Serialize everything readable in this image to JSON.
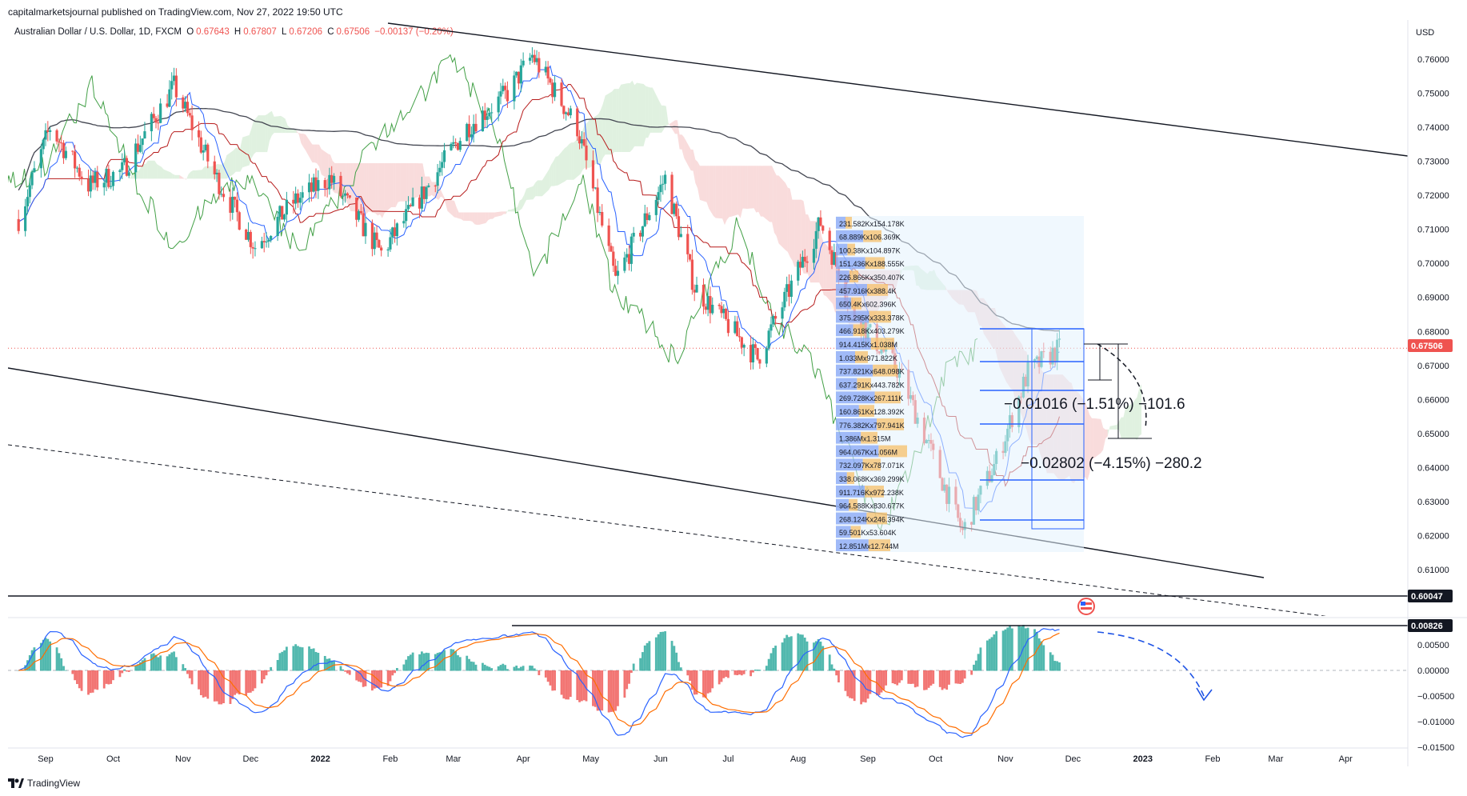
{
  "header": {
    "publisher_text": "capitalmarketsjournal published on TradingView.com, Nov 27, 2022 19:50 UTC"
  },
  "symbol": {
    "name": "Australian Dollar / U.S. Dollar, 1D, FXCM",
    "o_label": "O",
    "o_value": "0.67643",
    "h_label": "H",
    "h_value": "0.67807",
    "l_label": "L",
    "l_value": "0.67206",
    "c_label": "C",
    "c_value": "0.67506",
    "change": "−0.00137 (−0.20%)"
  },
  "footer": {
    "brand": "TradingView"
  },
  "chart_data": [
    {
      "type": "line",
      "title": "Australian Dollar / U.S. Dollar, 1D, FXCM",
      "currency_label": "USD",
      "price_axis": {
        "ticks": [
          "0.76000",
          "0.75000",
          "0.74000",
          "0.73000",
          "0.72000",
          "0.71000",
          "0.70000",
          "0.69000",
          "0.68000",
          "0.67000",
          "0.66000",
          "0.65000",
          "0.64000",
          "0.63000",
          "0.62000",
          "0.61000"
        ],
        "range": [
          0.6,
          0.765
        ],
        "current_price_label": "0.67506",
        "level_label": "0.60047"
      },
      "time_axis": {
        "labels": [
          "Sep",
          "Oct",
          "Nov",
          "Dec",
          "2022",
          "Feb",
          "Mar",
          "Apr",
          "May",
          "Jun",
          "Jul",
          "Aug",
          "Sep",
          "Oct",
          "Nov",
          "Dec",
          "2023",
          "Feb",
          "Mar",
          "Apr"
        ]
      },
      "price_series_approx": {
        "x": [
          "2021-08-20",
          "2021-09-03",
          "2021-09-20",
          "2021-10-05",
          "2021-10-28",
          "2021-11-15",
          "2021-12-03",
          "2021-12-20",
          "2022-01-05",
          "2022-01-28",
          "2022-02-15",
          "2022-03-07",
          "2022-03-25",
          "2022-04-05",
          "2022-04-25",
          "2022-05-12",
          "2022-06-03",
          "2022-06-16",
          "2022-07-14",
          "2022-08-11",
          "2022-08-26",
          "2022-09-15",
          "2022-10-13",
          "2022-10-28",
          "2022-11-11",
          "2022-11-25"
        ],
        "close": [
          0.713,
          0.74,
          0.723,
          0.727,
          0.752,
          0.726,
          0.705,
          0.718,
          0.725,
          0.703,
          0.72,
          0.74,
          0.75,
          0.761,
          0.74,
          0.695,
          0.725,
          0.693,
          0.672,
          0.712,
          0.685,
          0.668,
          0.621,
          0.642,
          0.668,
          0.675
        ]
      },
      "volume_profile": {
        "labels": [
          "231.582Kx154.178K",
          "68.889Kx106.369K",
          "100.38Kx104.897K",
          "151.436Kx188.555K",
          "226.866Kx350.407K",
          "457.916Kx388.4K",
          "650.4Kx602.396K",
          "375.295Kx333.378K",
          "466.918Kx403.279K",
          "914.415Kx1.038M",
          "1.033Mx971.822K",
          "737.821Kx648.098K",
          "637.291Kx443.782K",
          "269.728Kx267.111K",
          "160.861Kx128.392K",
          "776.382Kx797.941K",
          "1.386Mx1.315M",
          "964.067Kx1.056M",
          "732.097Kx787.071K",
          "338.068Kx369.299K",
          "911.716Kx972.238K",
          "964.588Kx830.677K",
          "268.124Kx246.394K",
          "59.501Kx53.604K",
          "12.851Mx12.744M"
        ]
      },
      "annotations": [
        "−0.01016 (−1.51%) −101.6",
        "−0.02802 (−4.15%) −280.2"
      ]
    },
    {
      "type": "bar",
      "indicator": "MACD",
      "value_axis": {
        "ticks": [
          "0.00500",
          "0.00000",
          "−0.00500",
          "−0.01000",
          "−0.01500"
        ],
        "range": [
          -0.0165,
          0.0095
        ],
        "level_label": "0.00826"
      }
    }
  ],
  "colors": {
    "bull": "#26a69a",
    "bear": "#ef5350",
    "ichimoku_cloud_bull": "#a5d6a7",
    "ichimoku_cloud_bear": "#ef9a9a",
    "tenkan": "#2962ff",
    "kijun": "#b71c1c",
    "chikou": "#43a047",
    "ma": "#434651",
    "macd_line": "#2962ff",
    "signal_line": "#ff6d00",
    "current_price_badge": "#ef5350",
    "level_badge": "#131722"
  }
}
